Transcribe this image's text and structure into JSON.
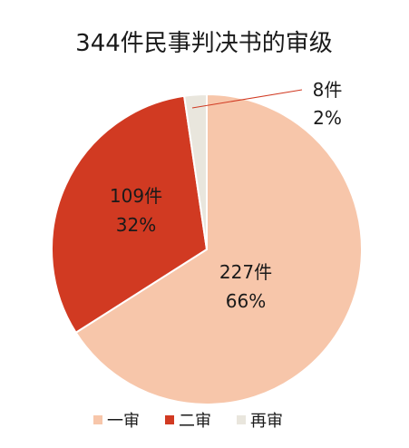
{
  "chart_data": {
    "type": "pie",
    "title": "344件民事判决书的审级",
    "slices": [
      {
        "name": "一审",
        "count_label": "227件",
        "value": 227,
        "percent_label": "66%",
        "color": "#f7c6aa"
      },
      {
        "name": "二审",
        "count_label": "109件",
        "value": 109,
        "percent_label": "32%",
        "color": "#d13a22"
      },
      {
        "name": "再审",
        "count_label": "8件",
        "value": 8,
        "percent_label": "2%",
        "color": "#e9e6dd"
      }
    ],
    "legend_position": "bottom"
  }
}
